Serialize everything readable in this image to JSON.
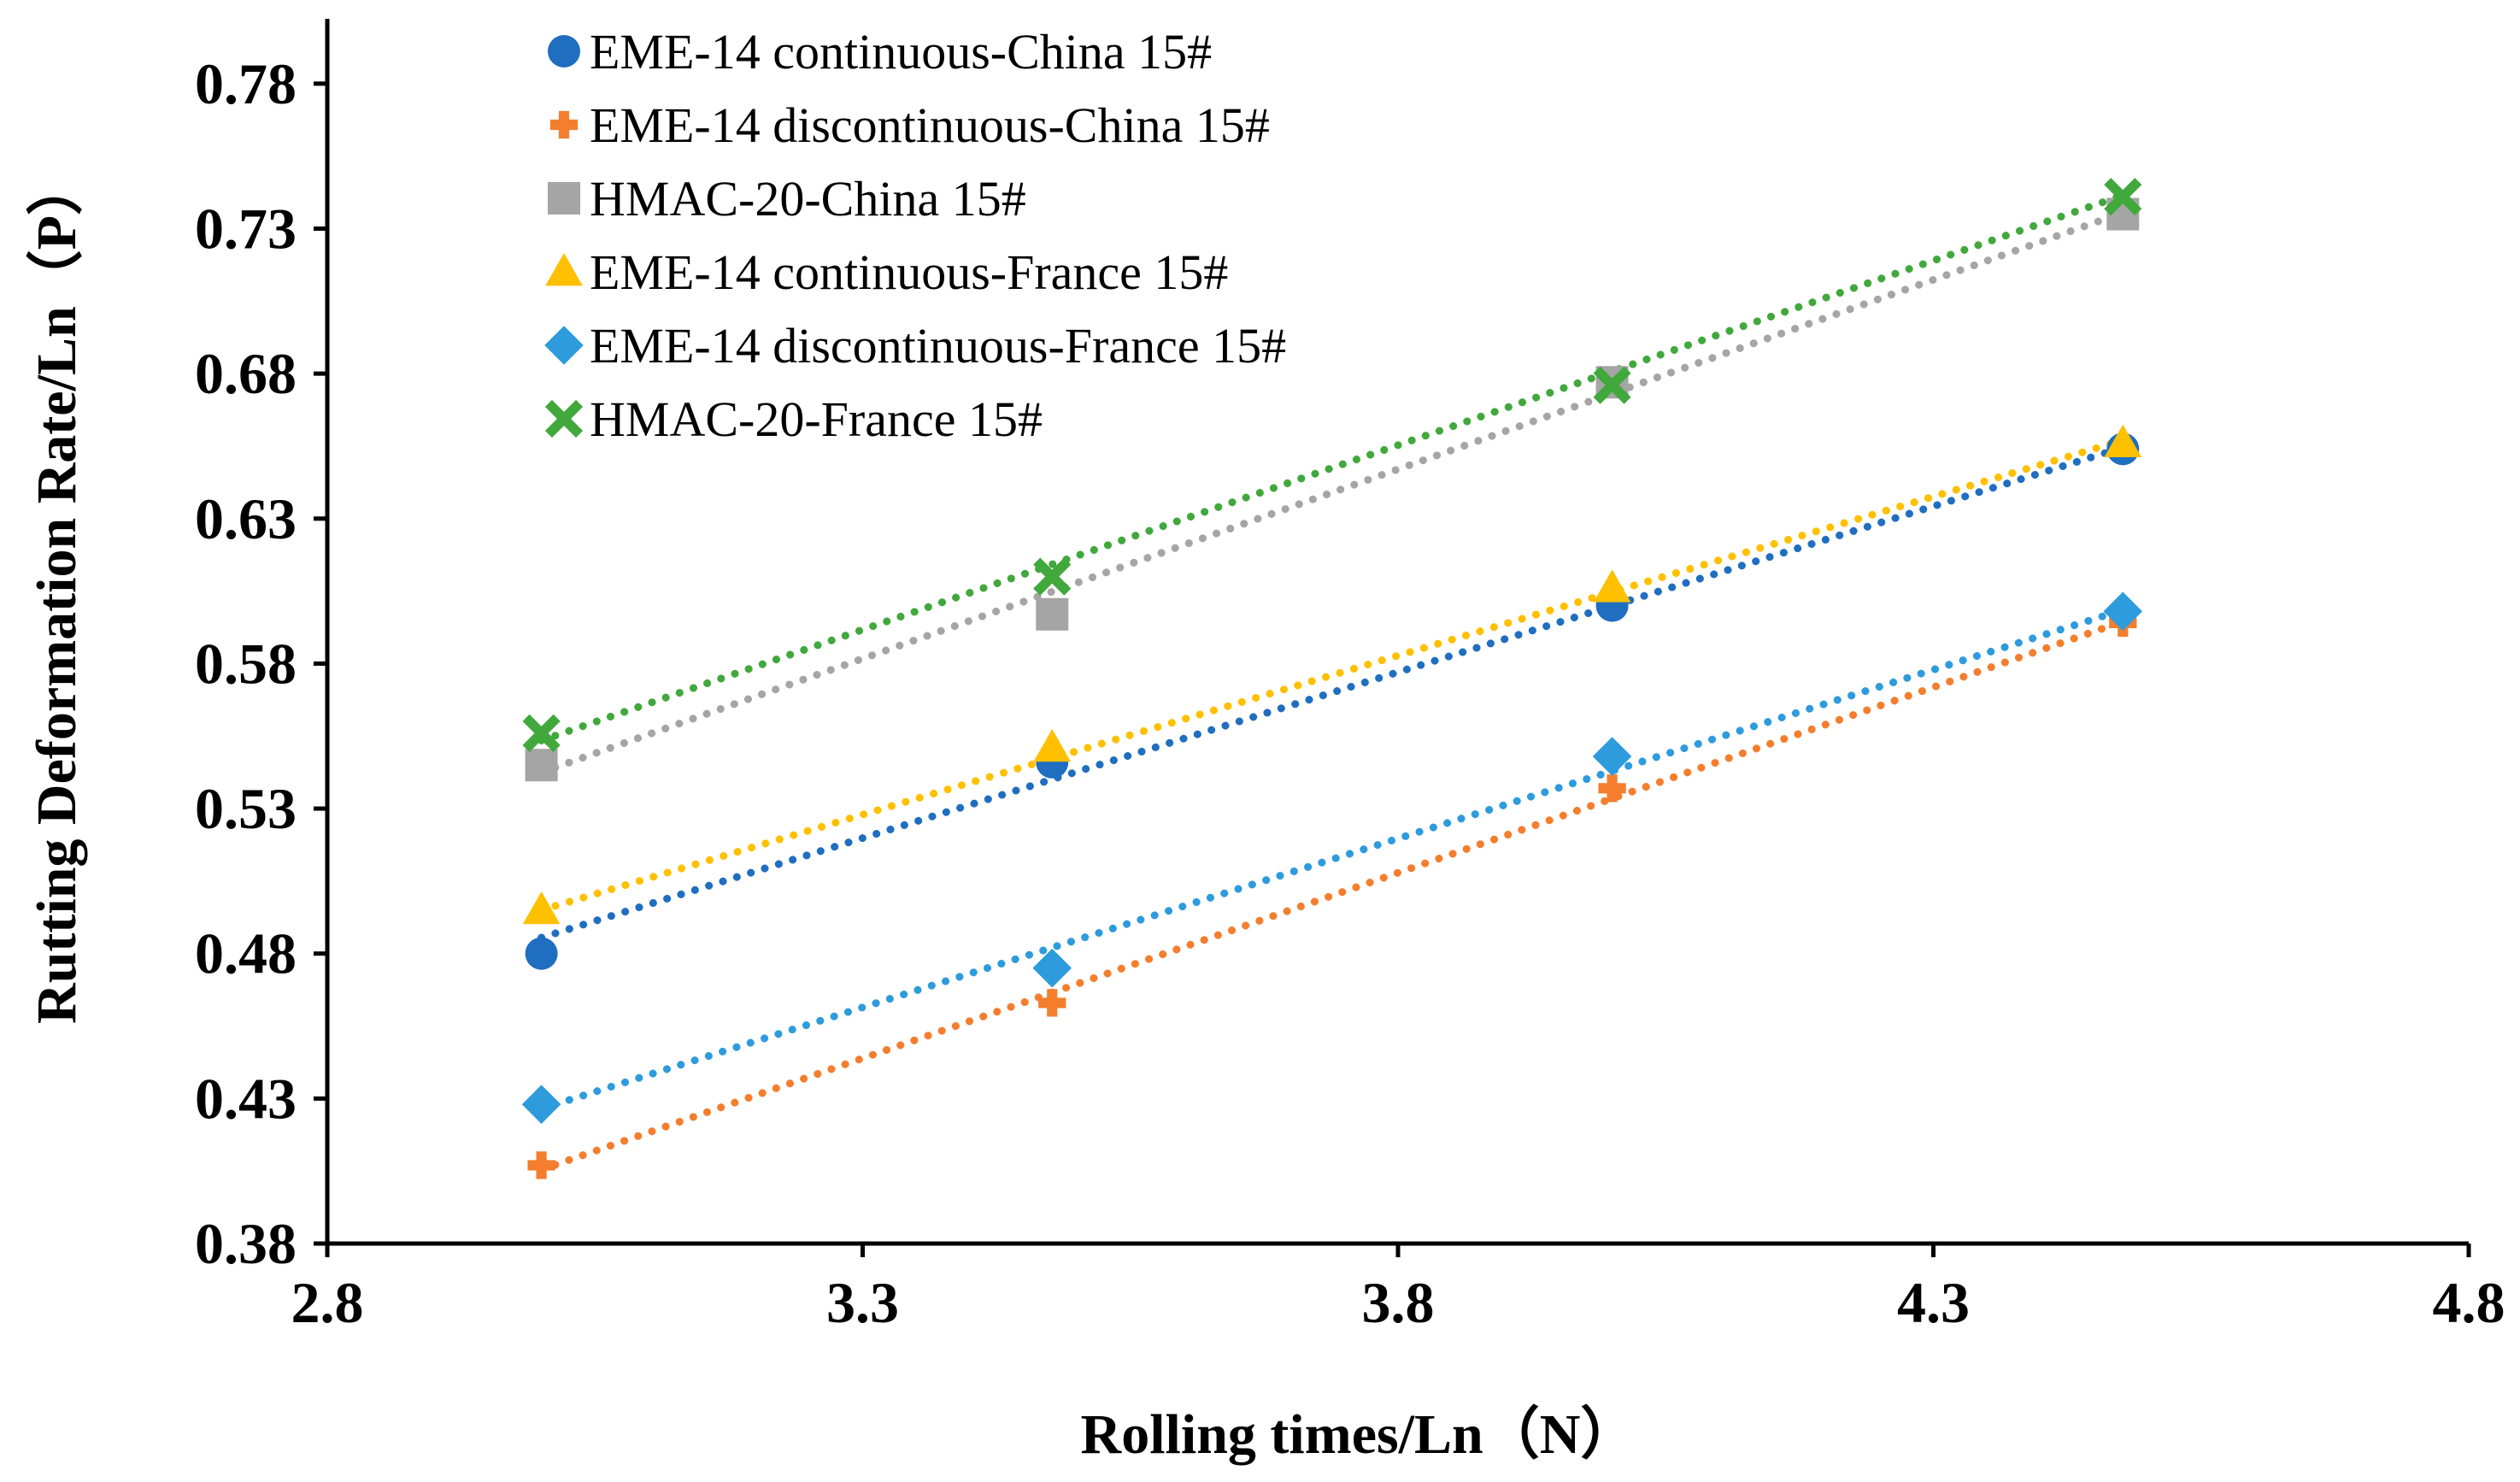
{
  "chart_data": {
    "type": "scatter",
    "title": "",
    "xlabel": "Rolling times/Ln（N）",
    "ylabel": "Rutting Deformation Rate/Ln（P）",
    "xlim": [
      2.8,
      4.8
    ],
    "ylim": [
      0.38,
      0.8
    ],
    "x_ticks": [
      "2.8",
      "3.3",
      "3.8",
      "4.3",
      "4.8"
    ],
    "y_ticks": [
      "0.38",
      "0.43",
      "0.48",
      "0.53",
      "0.58",
      "0.63",
      "0.68",
      "0.73",
      "0.78"
    ],
    "x_tick_values": [
      2.8,
      3.3,
      3.8,
      4.3,
      4.8
    ],
    "y_tick_values": [
      0.38,
      0.43,
      0.48,
      0.53,
      0.58,
      0.63,
      0.68,
      0.73,
      0.78
    ],
    "legend_position": "top-left",
    "trendline": "linear, dotted",
    "series": [
      {
        "name": "EME-14 continuous-China 15#",
        "marker": "circle",
        "color": "#1F6EC0",
        "x": [
          3.0,
          3.477,
          4.0,
          4.477
        ],
        "y": [
          0.48,
          0.546,
          0.6,
          0.654
        ],
        "trend": [
          0.4855,
          0.6545
        ]
      },
      {
        "name": "EME-14 discontinuous-China 15#",
        "marker": "plus",
        "color": "#F47E2E",
        "x": [
          3.0,
          3.477,
          4.0,
          4.477
        ],
        "y": [
          0.407,
          0.463,
          0.537,
          0.594
        ],
        "trend": [
          0.4055,
          0.5945
        ]
      },
      {
        "name": "HMAC-20-China 15#",
        "marker": "square",
        "color": "#A5A5A5",
        "x": [
          3.0,
          3.477,
          4.0,
          4.477
        ],
        "y": [
          0.545,
          0.597,
          0.677,
          0.735
        ],
        "trend": [
          0.5425,
          0.7355
        ]
      },
      {
        "name": "EME-14 continuous-France 15#",
        "marker": "triangle",
        "color": "#FFC000",
        "x": [
          3.0,
          3.477,
          4.0,
          4.477
        ],
        "y": [
          0.495,
          0.551,
          0.606,
          0.656
        ],
        "trend": [
          0.495,
          0.657
        ]
      },
      {
        "name": "EME-14 discontinuous-France 15#",
        "marker": "diamond",
        "color": "#2E9BDC",
        "x": [
          3.0,
          3.477,
          4.0,
          4.477
        ],
        "y": [
          0.428,
          0.475,
          0.548,
          0.598
        ],
        "trend": [
          0.4265,
          0.5985
        ]
      },
      {
        "name": "HMAC-20-France 15#",
        "marker": "x",
        "color": "#41A83C",
        "x": [
          3.0,
          3.477,
          4.0,
          4.477
        ],
        "y": [
          0.556,
          0.61,
          0.676,
          0.741
        ],
        "trend": [
          0.5535,
          0.7415
        ]
      }
    ]
  }
}
